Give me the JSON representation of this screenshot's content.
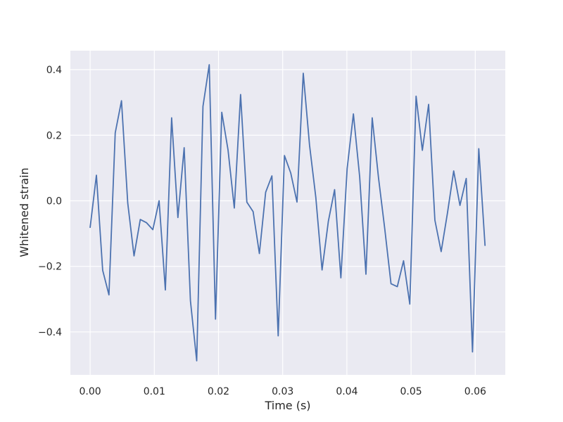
{
  "chart_data": {
    "type": "line",
    "title": "",
    "xlabel": "Time (s)",
    "ylabel": "Whitened strain",
    "xlim": [
      -0.00308,
      0.06468
    ],
    "ylim": [
      -0.531,
      0.458
    ],
    "x_ticks": [
      0.0,
      0.01,
      0.02,
      0.03,
      0.04,
      0.05,
      0.06
    ],
    "x_tick_labels": [
      "0.00",
      "0.01",
      "0.02",
      "0.03",
      "0.04",
      "0.05",
      "0.06"
    ],
    "y_ticks": [
      -0.4,
      -0.2,
      0.0,
      0.2,
      0.4
    ],
    "y_tick_labels": [
      "−0.4",
      "−0.2",
      "0.0",
      "0.2",
      "0.4"
    ],
    "grid": true,
    "legend": false,
    "colors": {
      "line": "#4c72b0",
      "background": "#eaeaf2",
      "grid": "#ffffff"
    },
    "series": [
      {
        "x": [
          0.0,
          0.000977,
          0.001953,
          0.00293,
          0.003906,
          0.004883,
          0.005859,
          0.006836,
          0.007813,
          0.008789,
          0.009766,
          0.010742,
          0.011719,
          0.012695,
          0.013672,
          0.014648,
          0.015625,
          0.016602,
          0.017578,
          0.018555,
          0.019531,
          0.020508,
          0.021484,
          0.022461,
          0.023438,
          0.024414,
          0.025391,
          0.026367,
          0.027344,
          0.02832,
          0.029297,
          0.030273,
          0.03125,
          0.032227,
          0.033203,
          0.03418,
          0.035156,
          0.036133,
          0.037109,
          0.038086,
          0.039063,
          0.040039,
          0.041016,
          0.041992,
          0.042969,
          0.043945,
          0.044922,
          0.045898,
          0.046875,
          0.047852,
          0.048828,
          0.049805,
          0.050781,
          0.051758,
          0.052734,
          0.053711,
          0.054688,
          0.055664,
          0.056641,
          0.057617,
          0.058594,
          0.05957,
          0.060547,
          0.061523
        ],
        "y": [
          -0.081,
          0.078,
          -0.212,
          -0.287,
          0.207,
          0.305,
          -0.007,
          -0.168,
          -0.057,
          -0.067,
          -0.088,
          0.0,
          -0.272,
          0.253,
          -0.051,
          0.162,
          -0.305,
          -0.488,
          0.288,
          0.415,
          -0.361,
          0.27,
          0.155,
          -0.022,
          0.324,
          -0.004,
          -0.033,
          -0.161,
          0.026,
          0.076,
          -0.412,
          0.138,
          0.085,
          -0.004,
          0.389,
          0.17,
          0.011,
          -0.211,
          -0.063,
          0.034,
          -0.235,
          0.098,
          0.265,
          0.073,
          -0.224,
          0.253,
          0.071,
          -0.085,
          -0.253,
          -0.262,
          -0.183,
          -0.315,
          0.319,
          0.154,
          0.294,
          -0.059,
          -0.155,
          -0.038,
          0.091,
          -0.014,
          0.068,
          -0.461,
          0.159,
          -0.136
        ]
      }
    ]
  }
}
